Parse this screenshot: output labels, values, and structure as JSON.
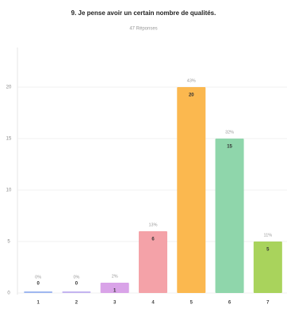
{
  "chart_data": {
    "type": "bar",
    "title": "9. Je pense avoir un certain nombre de qualités.",
    "subtitle": "47 Réponses",
    "categories": [
      "1",
      "2",
      "3",
      "4",
      "5",
      "6",
      "7"
    ],
    "values": [
      0,
      0,
      1,
      6,
      20,
      15,
      5
    ],
    "percent_labels": [
      "0%",
      "0%",
      "2%",
      "13%",
      "43%",
      "32%",
      "11%"
    ],
    "colors": [
      "#9fb7f0",
      "#c3b4f0",
      "#d9a3e8",
      "#f4a2a8",
      "#fbb84f",
      "#8fd6ab",
      "#a9d35c"
    ],
    "ylim": [
      0,
      20
    ],
    "yticks": [
      0,
      5,
      10,
      15,
      20
    ],
    "grid": true
  }
}
